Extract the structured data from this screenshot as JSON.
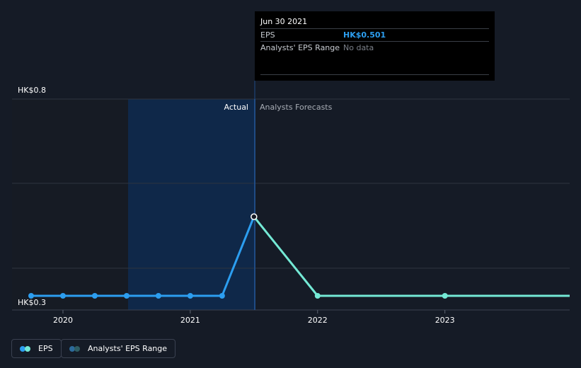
{
  "chart_data": {
    "type": "line",
    "y_axis": {
      "labels": [
        "HK$0.8",
        "HK$0.3"
      ],
      "ylim": [
        0.3,
        0.8
      ]
    },
    "x_axis": {
      "ticks": [
        "2020",
        "2021",
        "2022",
        "2023"
      ],
      "xlim": [
        2019.6,
        2023.98
      ]
    },
    "regions": {
      "actual_label": "Actual",
      "forecast_label": "Analysts Forecasts",
      "divider_x": 2021.5
    },
    "series": [
      {
        "name": "EPS",
        "color": "#2c9ef0",
        "points": [
          {
            "x": 2019.75,
            "y": 0.3
          },
          {
            "x": 2020.0,
            "y": 0.3
          },
          {
            "x": 2020.25,
            "y": 0.3
          },
          {
            "x": 2020.5,
            "y": 0.3
          },
          {
            "x": 2020.75,
            "y": 0.3
          },
          {
            "x": 2021.0,
            "y": 0.3
          },
          {
            "x": 2021.25,
            "y": 0.3
          },
          {
            "x": 2021.5,
            "y": 0.501
          }
        ]
      },
      {
        "name": "EPS forecast",
        "color": "#74e9d5",
        "points": [
          {
            "x": 2021.5,
            "y": 0.501
          },
          {
            "x": 2022.0,
            "y": 0.3
          },
          {
            "x": 2023.0,
            "y": 0.3
          },
          {
            "x": 2023.98,
            "y": 0.3
          }
        ]
      }
    ],
    "range_band": {
      "name": "Analysts' EPS Range",
      "historic": [
        {
          "x": 2019.75,
          "low": 0.3,
          "high": 0.3
        },
        {
          "x": 2020.0,
          "low": 0.3,
          "high": 0.3
        },
        {
          "x": 2020.5,
          "low": 0.3,
          "high": 0.3
        },
        {
          "x": 2021.0,
          "low": 0.3,
          "high": 0.3
        },
        {
          "x": 2021.5,
          "low": 0.3,
          "high": 0.3
        }
      ],
      "forecast": [
        {
          "x": 2021.5,
          "low": 0.3,
          "high": 0.3
        },
        {
          "x": 2022.0,
          "low": 0.3,
          "high": 0.3
        },
        {
          "x": 2023.0,
          "low": 0.3,
          "high": 0.3
        },
        {
          "x": 2023.98,
          "low": 0.3,
          "high": 0.3
        }
      ]
    }
  },
  "tooltip": {
    "date": "Jun 30 2021",
    "eps_label": "EPS",
    "eps_value": "HK$0.501",
    "range_label": "Analysts' EPS Range",
    "range_value": "No data"
  },
  "legend": {
    "eps": "EPS",
    "range": "Analysts' EPS Range"
  },
  "colors": {
    "background": "#151b26",
    "eps": "#2c9ef0",
    "forecast": "#74e9d5",
    "band": "#2f5d63",
    "highlight": "#0f2849"
  }
}
